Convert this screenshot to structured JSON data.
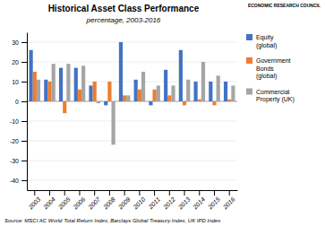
{
  "chart_data": {
    "type": "bar",
    "title": "Historical Asset Class Performance",
    "subtitle": "percentage, 2003-2016",
    "annotations": [
      "ECONOMIC RESEARCH COUNCIL",
      "Source: MSCI AC World Total Return Index, Barclays Global Treasury Index, UK IPD Index"
    ],
    "categories": [
      "2003",
      "2004",
      "2005",
      "2006",
      "2007",
      "2008",
      "2009",
      "2010",
      "2011",
      "2012",
      "2013",
      "2014",
      "2015",
      "2016"
    ],
    "series": [
      {
        "name": "Equity\n(global)",
        "color": "#4472c4",
        "values": [
          26,
          11,
          17,
          17,
          8,
          -2,
          30,
          11,
          -2,
          16,
          26,
          10,
          10,
          10
        ]
      },
      {
        "name": "Government\nBonds\n(global)",
        "color": "#ed7d31",
        "values": [
          15,
          10,
          -6,
          6,
          10,
          10,
          3,
          6,
          6,
          3,
          -2,
          1,
          -2,
          1
        ]
      },
      {
        "name": "Commercial\nProperty (UK)",
        "color": "#a5a5a5",
        "values": [
          11,
          19,
          19,
          18,
          -1,
          -22,
          3,
          15,
          8,
          8,
          11,
          20,
          13,
          8
        ]
      }
    ],
    "ylim": [
      -45,
      35
    ],
    "yticks": [
      -40,
      -30,
      -20,
      -10,
      0,
      10,
      20,
      30
    ],
    "grid": true,
    "legend": "right"
  }
}
